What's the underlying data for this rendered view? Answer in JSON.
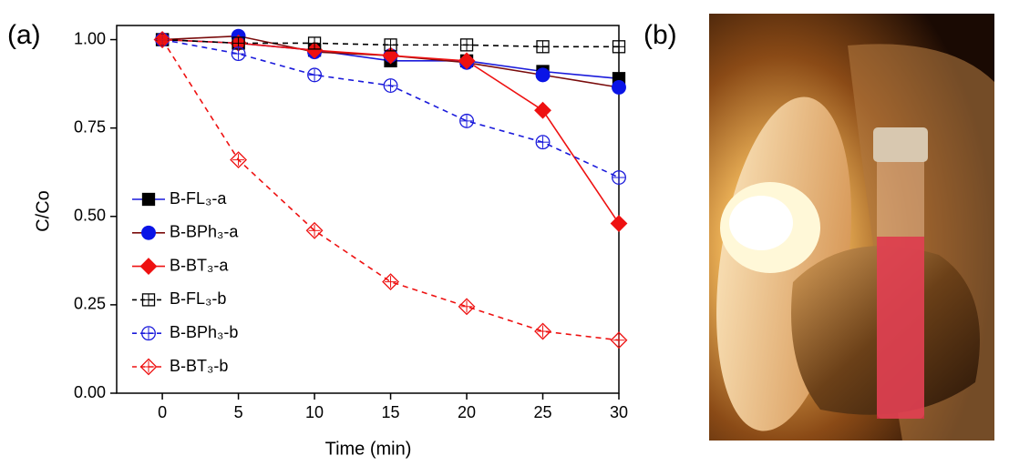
{
  "chart_data": {
    "type": "line",
    "panel_labels": [
      "(a)",
      "(b)"
    ],
    "x_label": "Time (min)",
    "y_label": "C/Co",
    "x": [
      0,
      5,
      10,
      15,
      20,
      25,
      30
    ],
    "xlim": [
      -3,
      30
    ],
    "xticks": [
      0,
      5,
      10,
      15,
      20,
      25,
      30
    ],
    "ylim": [
      0,
      1.04
    ],
    "yticks": [
      {
        "value": 0,
        "label": "0.00"
      },
      {
        "value": 0.25,
        "label": "0.25"
      },
      {
        "value": 0.5,
        "label": "0.50"
      },
      {
        "value": 0.75,
        "label": "0.75"
      },
      {
        "value": 1,
        "label": "1.00"
      }
    ],
    "legend": "center left",
    "series": [
      {
        "name": "B-FL₃-a",
        "color": "#000000",
        "line_color": "#1a1adb",
        "marker": "square",
        "dashed": false,
        "values": [
          1,
          0.99,
          0.97,
          0.94,
          0.94,
          0.91,
          0.89
        ]
      },
      {
        "name": "B-BPh₃-a",
        "color": "#0a14e6",
        "line_color": "#7a0c0c",
        "marker": "circle",
        "dashed": false,
        "values": [
          1,
          1.01,
          0.965,
          0.955,
          0.935,
          0.9,
          0.865
        ]
      },
      {
        "name": "B-BT₃-a",
        "color": "#ee1111",
        "line_color": "#ee1111",
        "marker": "diamond",
        "dashed": false,
        "values": [
          1,
          0.99,
          0.97,
          0.955,
          0.94,
          0.8,
          0.48
        ]
      },
      {
        "name": "B-FL₃-b",
        "color": "#000000",
        "line_color": "#000000",
        "marker": "square-open",
        "dashed": true,
        "values": [
          1,
          0.99,
          0.99,
          0.985,
          0.985,
          0.98,
          0.98
        ]
      },
      {
        "name": "B-BPh₃-b",
        "color": "#1a1adb",
        "line_color": "#1a1adb",
        "marker": "circle-open",
        "dashed": true,
        "values": [
          1,
          0.96,
          0.9,
          0.87,
          0.77,
          0.71,
          0.61
        ]
      },
      {
        "name": "B-BT₃-b",
        "color": "#ee1111",
        "line_color": "#ee1111",
        "marker": "diamond-open",
        "dashed": true,
        "values": [
          1,
          0.66,
          0.46,
          0.315,
          0.245,
          0.175,
          0.15
        ]
      }
    ]
  }
}
